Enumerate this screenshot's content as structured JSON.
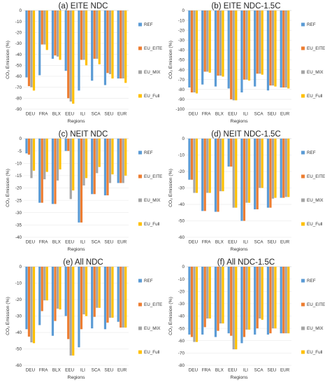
{
  "series_colors": {
    "REF": "#5b9bd5",
    "EU_EITE": "#ed7d31",
    "EU_MIX": "#a5a5a5",
    "EU_Full": "#ffc000"
  },
  "chart_data": [
    {
      "type": "bar",
      "title": "(a) EITE NDC",
      "xlabel": "Regions",
      "ylabel": "CO₂ Emission (%)",
      "ylim": [
        -90,
        0
      ],
      "ystep": 10,
      "categories": [
        "DEU",
        "FRA",
        "BLX",
        "EEU",
        "ILI",
        "SCA",
        "SEU",
        "EUR"
      ],
      "series": [
        {
          "name": "REF",
          "values": [
            -61,
            -59,
            -44,
            -55,
            -73,
            -64,
            -68,
            -62
          ]
        },
        {
          "name": "EU_EITE",
          "values": [
            -69,
            -31,
            -41,
            -80,
            -45,
            -44,
            -57,
            -62
          ]
        },
        {
          "name": "EU_MIX",
          "values": [
            -70,
            -31,
            -42,
            -83,
            -45,
            -44,
            -58,
            -62
          ]
        },
        {
          "name": "EU_Full",
          "values": [
            -73,
            -36,
            -45,
            -85,
            -50,
            -49,
            -62,
            -66
          ]
        }
      ]
    },
    {
      "type": "bar",
      "title": "(b) EITE NDC-1.5C",
      "xlabel": "Regions",
      "ylabel": "CO₂ Emission (%)",
      "ylim": [
        -100,
        0
      ],
      "ystep": 10,
      "categories": [
        "DEU",
        "FRA",
        "BLX",
        "EEU",
        "ILI",
        "SCA",
        "SEU",
        "EUR"
      ],
      "series": [
        {
          "name": "REF",
          "values": [
            -78,
            -75,
            -77,
            -79,
            -83,
            -77,
            -81,
            -78
          ]
        },
        {
          "name": "EU_EITE",
          "values": [
            -83,
            -62,
            -66,
            -90,
            -70,
            -64,
            -76,
            -78
          ]
        },
        {
          "name": "EU_MIX",
          "values": [
            -83,
            -62,
            -66,
            -91,
            -70,
            -64,
            -76,
            -78
          ]
        },
        {
          "name": "EU_Full",
          "values": [
            -84,
            -63,
            -67,
            -91,
            -71,
            -65,
            -77,
            -79
          ]
        }
      ]
    },
    {
      "type": "bar",
      "title": "(c) NEIT NDC",
      "xlabel": "Regions",
      "ylabel": "CO₂ Emission (%)",
      "ylim": [
        -40,
        0
      ],
      "ystep": 5,
      "categories": [
        "DEU",
        "FRA",
        "BLX",
        "EEU",
        "ILI",
        "SCA",
        "SEU",
        "EUR"
      ],
      "series": [
        {
          "name": "REF",
          "values": [
            -6,
            -26,
            -26.5,
            -5,
            -34,
            -22.5,
            -23,
            -18
          ]
        },
        {
          "name": "EU_EITE",
          "values": [
            -6.5,
            -26,
            -26.5,
            -5,
            -34,
            -22.5,
            -23,
            -18
          ]
        },
        {
          "name": "EU_MIX",
          "values": [
            -16,
            -16.5,
            -17,
            -24.5,
            -19,
            -14,
            -18,
            -18
          ]
        },
        {
          "name": "EU_Full",
          "values": [
            -13,
            -13.5,
            -12.5,
            -21,
            -16,
            -11.5,
            -14.5,
            -15
          ]
        }
      ]
    },
    {
      "type": "bar",
      "title": "(d) NEIT NDC-1.5C",
      "xlabel": "Regions",
      "ylabel": "CO₂ Emission (%)",
      "ylim": [
        -60,
        0
      ],
      "ystep": 10,
      "categories": [
        "DEU",
        "FRA",
        "BLX",
        "EEU",
        "ILI",
        "SCA",
        "SEU",
        "EUR"
      ],
      "series": [
        {
          "name": "REF",
          "values": [
            -25,
            -44,
            -44.5,
            -17,
            -50,
            -43,
            -42,
            -36
          ]
        },
        {
          "name": "EU_EITE",
          "values": [
            -25,
            -44,
            -44.5,
            -17,
            -50,
            -43,
            -42,
            -36
          ]
        },
        {
          "name": "EU_MIX",
          "values": [
            -33,
            -33,
            -32,
            -42,
            -39,
            -30,
            -36.5,
            -35.5
          ]
        },
        {
          "name": "EU_Full",
          "values": [
            -33,
            -33,
            -32,
            -42,
            -39,
            -30,
            -36,
            -35.5
          ]
        }
      ]
    },
    {
      "type": "bar",
      "title": "(e) All NDC",
      "xlabel": "Regions",
      "ylabel": "CO₂ Emission (%)",
      "ylim": [
        -60,
        0
      ],
      "ystep": 10,
      "categories": [
        "DEU",
        "FRA",
        "BLX",
        "EEU",
        "ILI",
        "SCA",
        "SEU",
        "EUR"
      ],
      "series": [
        {
          "name": "REF",
          "values": [
            -38,
            -35.5,
            -42,
            -30,
            -49,
            -37.5,
            -38,
            -33.5
          ]
        },
        {
          "name": "EU_EITE",
          "values": [
            -42.5,
            -27,
            -33,
            -44,
            -38,
            -30.5,
            -34,
            -37
          ]
        },
        {
          "name": "EU_MIX",
          "values": [
            -46,
            -20.5,
            -25.5,
            -54,
            -29,
            -25,
            -31,
            -37
          ]
        },
        {
          "name": "EU_Full",
          "values": [
            -46.5,
            -20.5,
            -26,
            -54,
            -30,
            -25,
            -31,
            -37
          ]
        }
      ]
    },
    {
      "type": "bar",
      "title": "(f) All NDC-1.5C",
      "xlabel": "Regions",
      "ylabel": "CO₂ Emission (%)",
      "ylim": [
        -80,
        0
      ],
      "ystep": 10,
      "categories": [
        "DEU",
        "FRA",
        "BLX",
        "EEU",
        "ILI",
        "SCA",
        "SEU",
        "EUR"
      ],
      "series": [
        {
          "name": "REF",
          "values": [
            -55,
            -55,
            -57,
            -54,
            -62,
            -55,
            -55,
            -54
          ]
        },
        {
          "name": "EU_EITE",
          "values": [
            -57,
            -49,
            -52,
            -56,
            -57,
            -50,
            -54,
            -54
          ]
        },
        {
          "name": "EU_MIX",
          "values": [
            -61,
            -42,
            -46,
            -67,
            -51,
            -42,
            -50,
            -54
          ]
        },
        {
          "name": "EU_Full",
          "values": [
            -61,
            -42,
            -46,
            -67,
            -51,
            -43,
            -50,
            -54
          ]
        }
      ]
    }
  ]
}
